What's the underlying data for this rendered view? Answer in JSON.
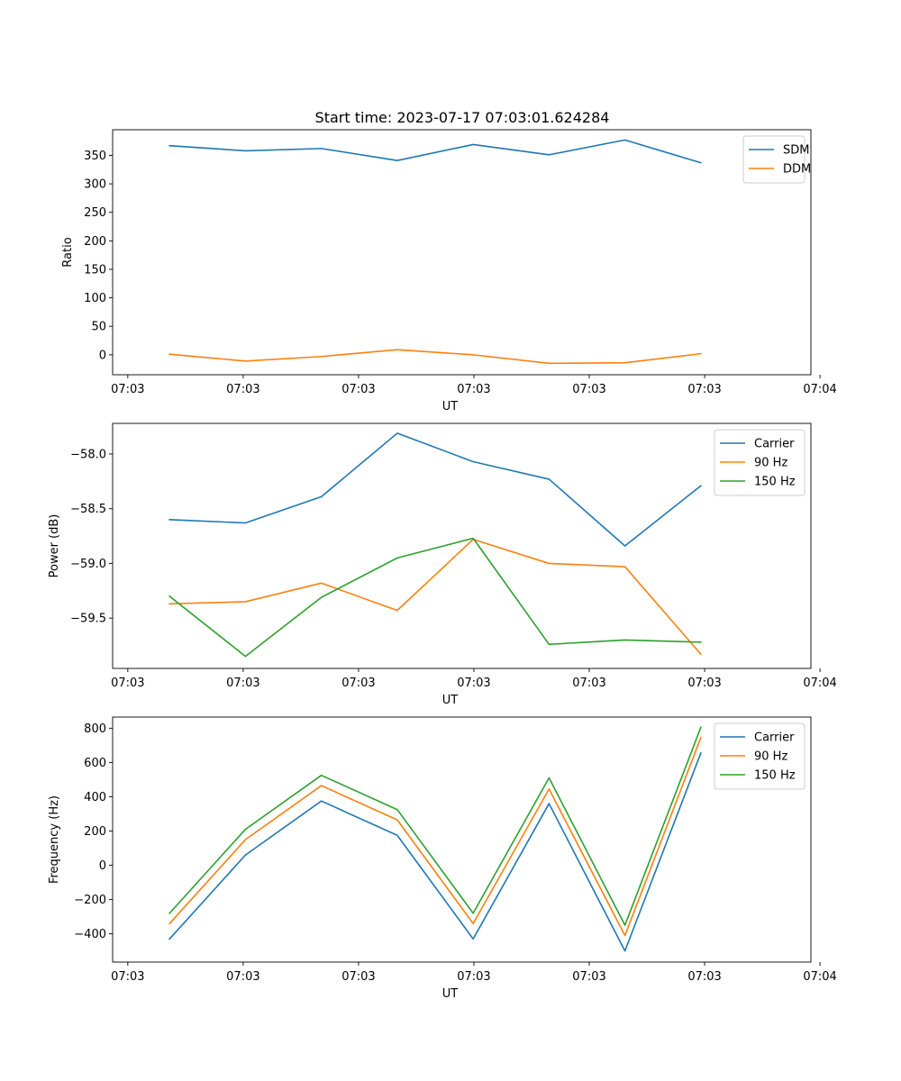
{
  "figure": {
    "title": "Start time: 2023-07-17 07:03:01.624284"
  },
  "colors": {
    "blue": "#1f77b4",
    "orange": "#ff7f0e",
    "green": "#2ca02c"
  },
  "chart_data": [
    {
      "type": "line",
      "xlabel": "UT",
      "ylabel": "Ratio",
      "x": [
        0,
        1,
        2,
        3,
        4,
        5,
        6,
        7
      ],
      "xlim": [
        -0.75,
        8.45
      ],
      "ylim": [
        -35,
        395
      ],
      "yticks": [
        0,
        50,
        100,
        150,
        200,
        250,
        300,
        350
      ],
      "ytick_labels": [
        "0",
        "50",
        "100",
        "150",
        "200",
        "250",
        "300",
        "350"
      ],
      "xticks": [
        -0.55,
        0.97,
        2.49,
        4.01,
        5.53,
        7.05,
        8.57
      ],
      "xtick_labels": [
        "07:03",
        "07:03",
        "07:03",
        "07:03",
        "07:03",
        "07:03",
        "07:04"
      ],
      "legend_position": "upper-right",
      "series": [
        {
          "name": "SDM",
          "color": "blue",
          "values": [
            367,
            358,
            362,
            341,
            369,
            351,
            377,
            337
          ]
        },
        {
          "name": "DDM",
          "color": "orange",
          "values": [
            1,
            -11,
            -3,
            9,
            0,
            -15,
            -14,
            2
          ]
        }
      ]
    },
    {
      "type": "line",
      "xlabel": "UT",
      "ylabel": "Power (dB)",
      "x": [
        0,
        1,
        2,
        3,
        4,
        5,
        6,
        7
      ],
      "xlim": [
        -0.75,
        8.45
      ],
      "ylim": [
        -59.96,
        -57.72
      ],
      "yticks": [
        -59.5,
        -59.0,
        -58.5,
        -58.0
      ],
      "ytick_labels": [
        "−59.5",
        "−59.0",
        "−58.5",
        "−58.0"
      ],
      "xticks": [
        -0.55,
        0.97,
        2.49,
        4.01,
        5.53,
        7.05,
        8.57
      ],
      "xtick_labels": [
        "07:03",
        "07:03",
        "07:03",
        "07:03",
        "07:03",
        "07:03",
        "07:04"
      ],
      "legend_position": "upper-right",
      "series": [
        {
          "name": "Carrier",
          "color": "blue",
          "values": [
            -58.6,
            -58.63,
            -58.39,
            -57.81,
            -58.07,
            -58.23,
            -58.84,
            -58.29
          ]
        },
        {
          "name": "90 Hz",
          "color": "orange",
          "values": [
            -59.37,
            -59.35,
            -59.18,
            -59.43,
            -58.78,
            -59.0,
            -59.03,
            -59.83
          ]
        },
        {
          "name": "150 Hz",
          "color": "green",
          "values": [
            -59.3,
            -59.85,
            -59.31,
            -58.95,
            -58.77,
            -59.74,
            -59.7,
            -59.72
          ]
        }
      ]
    },
    {
      "type": "line",
      "xlabel": "UT",
      "ylabel": "Frequency (Hz)",
      "x": [
        0,
        1,
        2,
        3,
        4,
        5,
        6,
        7
      ],
      "xlim": [
        -0.75,
        8.45
      ],
      "ylim": [
        -565,
        865
      ],
      "yticks": [
        -400,
        -200,
        0,
        200,
        400,
        600,
        800
      ],
      "ytick_labels": [
        "−400",
        "−200",
        "0",
        "200",
        "400",
        "600",
        "800"
      ],
      "xticks": [
        -0.55,
        0.97,
        2.49,
        4.01,
        5.53,
        7.05,
        8.57
      ],
      "xtick_labels": [
        "07:03",
        "07:03",
        "07:03",
        "07:03",
        "07:03",
        "07:03",
        "07:04"
      ],
      "legend_position": "upper-right",
      "series": [
        {
          "name": "Carrier",
          "color": "blue",
          "values": [
            -430,
            60,
            375,
            175,
            -430,
            360,
            -500,
            655
          ]
        },
        {
          "name": "90 Hz",
          "color": "orange",
          "values": [
            -340,
            150,
            465,
            265,
            -340,
            445,
            -410,
            745
          ]
        },
        {
          "name": "150 Hz",
          "color": "green",
          "values": [
            -280,
            210,
            525,
            325,
            -280,
            510,
            -350,
            805
          ]
        }
      ]
    }
  ]
}
